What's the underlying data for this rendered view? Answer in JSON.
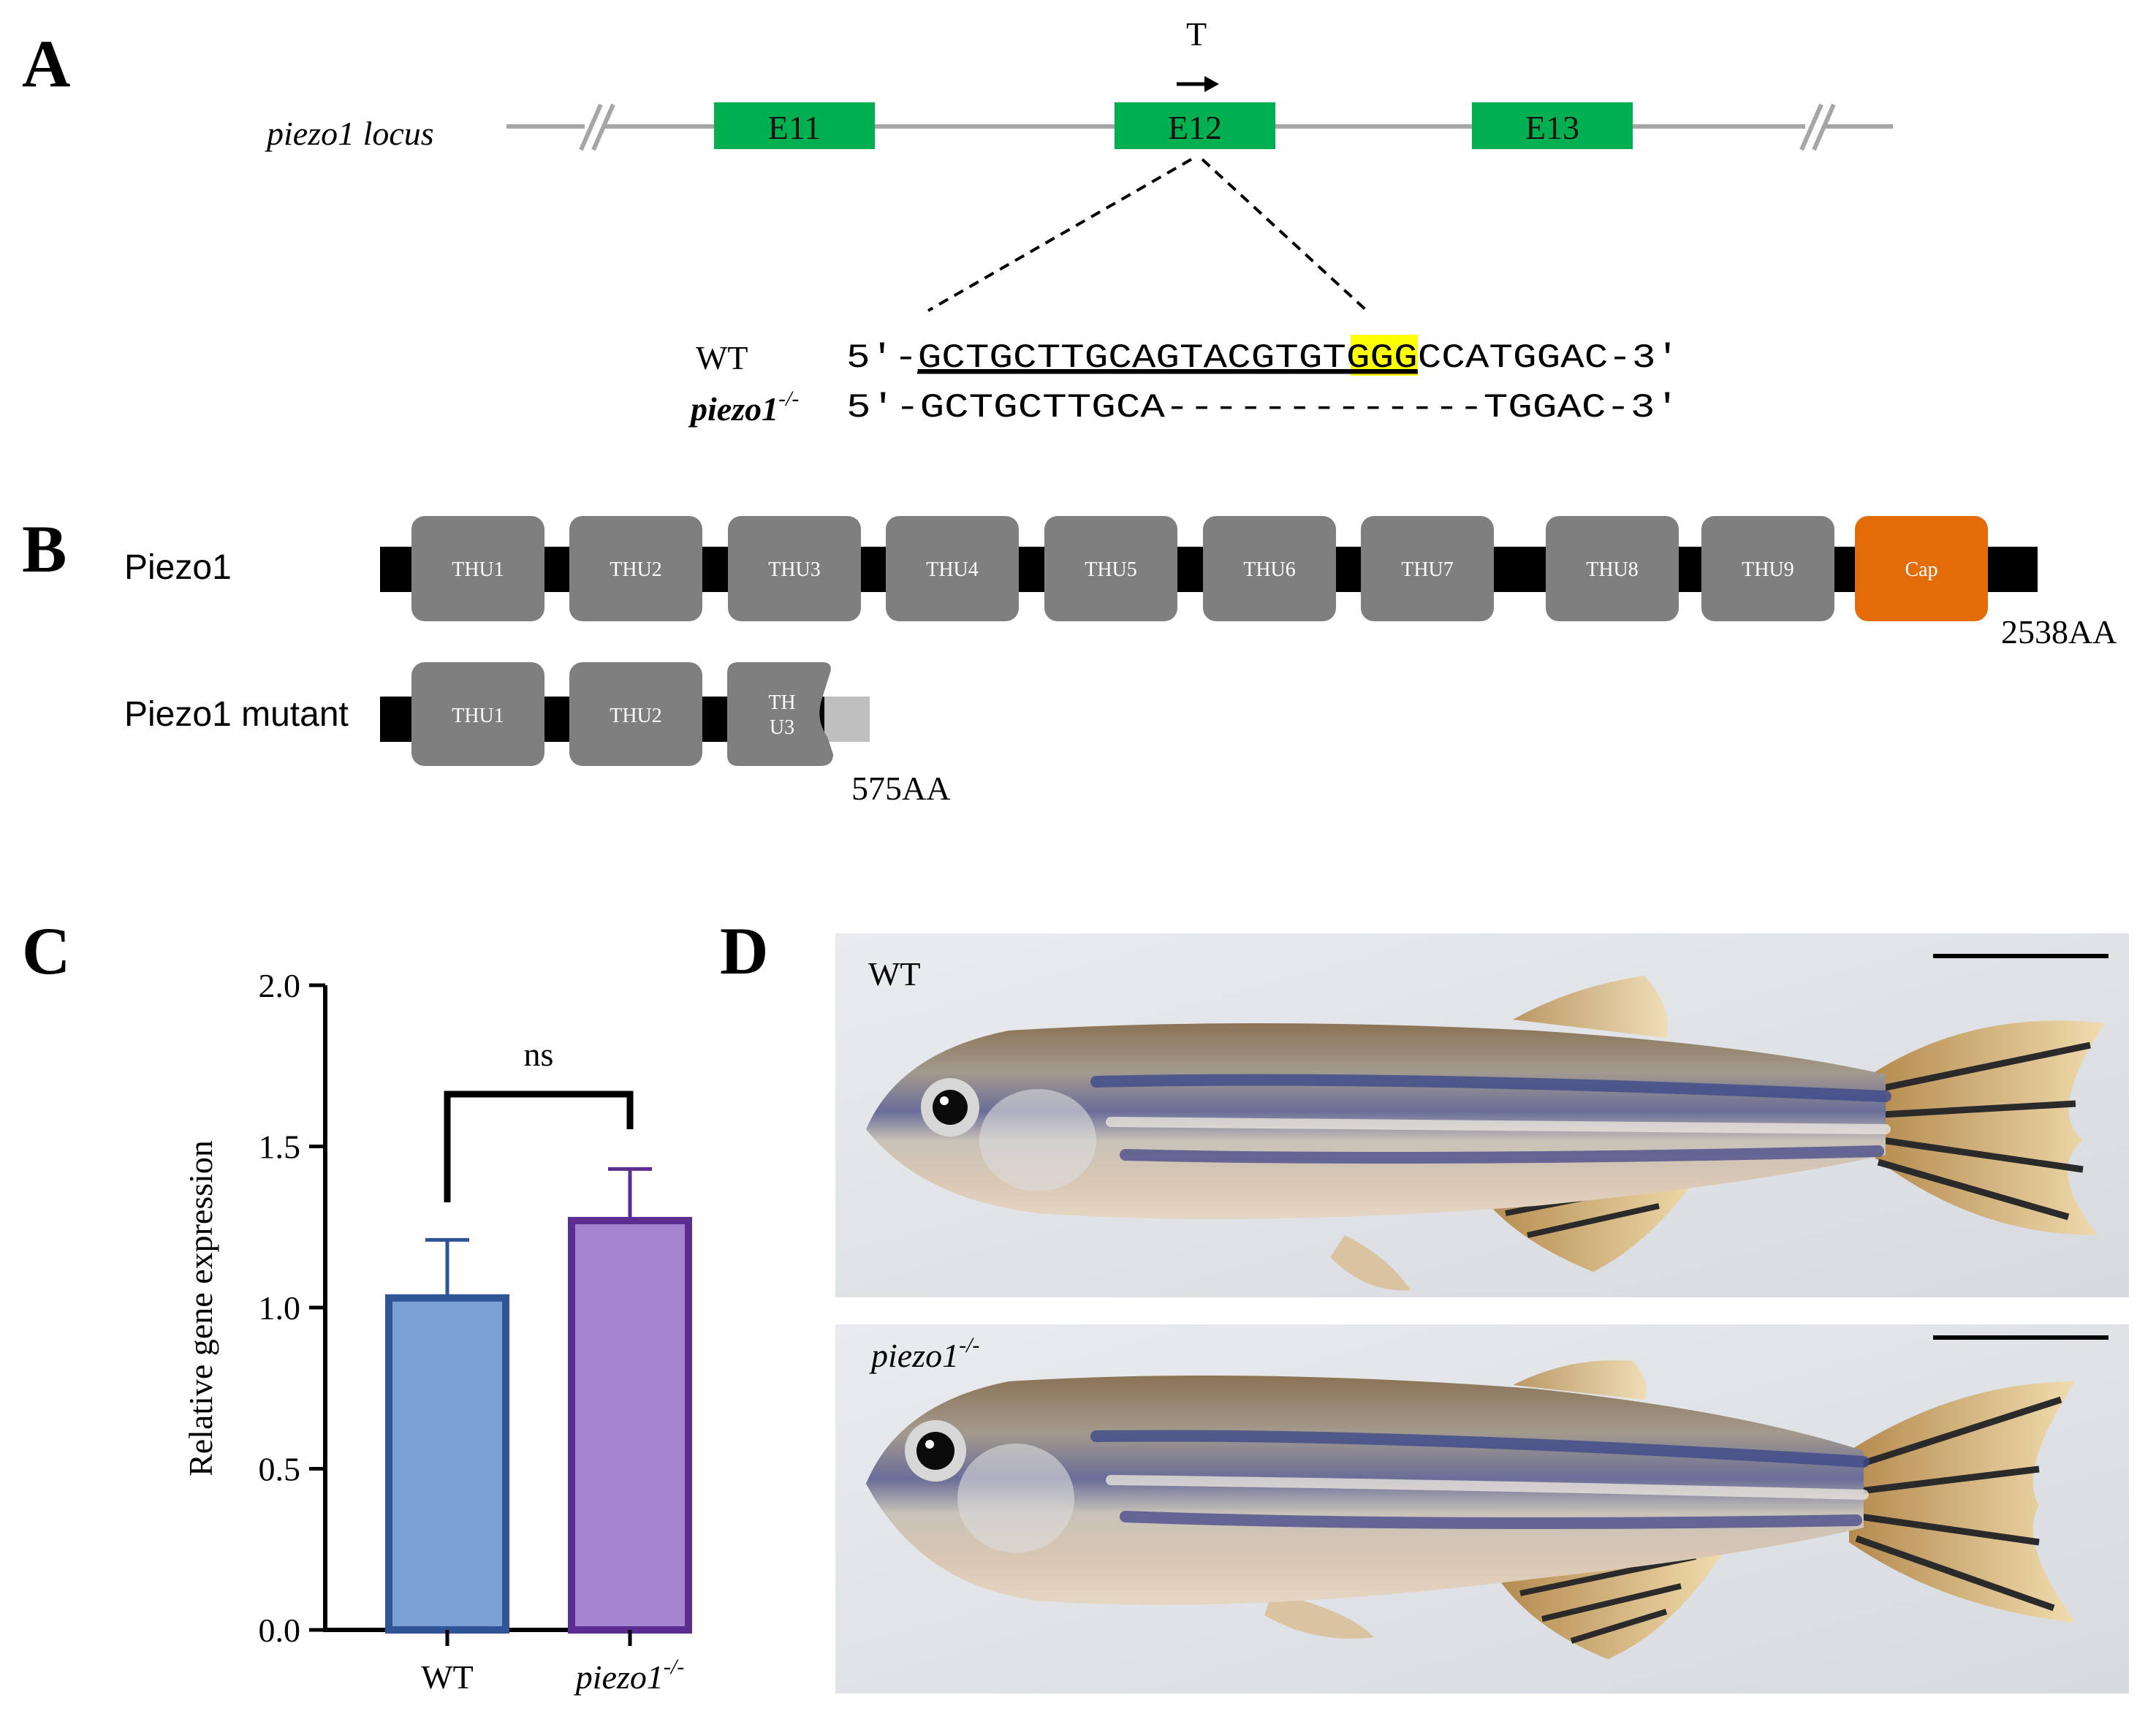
{
  "panels": {
    "a": "A",
    "b": "B",
    "c": "C",
    "d": "D"
  },
  "panel_a": {
    "locus_label": "piezo1 locus",
    "exons": [
      "E11",
      "E12",
      "E13"
    ],
    "target_label": "T",
    "wt_label": "WT",
    "mutant_label": "piezo1",
    "mutant_superscript": "-/-",
    "wt_seq": {
      "prefix": "5′-",
      "guide": "GCTGCTTGCAGTACGTGT",
      "pam": "GGG",
      "rest": "CCATGGAC-3′"
    },
    "mut_seq": "5′-GCTGCTTGCA-------------TGGAC-3′",
    "colors": {
      "exon": "#00b050",
      "pam_highlight": "#ffff00",
      "line": "#a6a6a6"
    }
  },
  "panel_b": {
    "wt_label": "Piezo1",
    "mutant_label": "Piezo1 mutant",
    "wt_domains": [
      "THU1",
      "THU2",
      "THU3",
      "THU4",
      "THU5",
      "THU6",
      "THU7",
      "THU8",
      "THU9",
      "Cap"
    ],
    "mutant_domains": [
      "THU1",
      "THU2"
    ],
    "truncated_domain": [
      "TH",
      "U3"
    ],
    "wt_length": "2538AA",
    "mutant_length": "575AA",
    "colors": {
      "domain": "#7f7f7f",
      "cap": "#e36c09",
      "backbone": "#000000",
      "truncated_tail": "#bfbfbf"
    }
  },
  "chart_data": {
    "type": "bar",
    "categories": [
      "WT",
      "piezo1"
    ],
    "category_superscripts": [
      "",
      "-/-"
    ],
    "values": [
      1.03,
      1.27
    ],
    "error_upper": [
      1.21,
      1.43
    ],
    "ylabel": "Relative gene expression",
    "xlabel": "",
    "ylim": [
      0,
      2.0
    ],
    "yticks": [
      "0.0",
      "0.5",
      "1.0",
      "1.5",
      "2.0"
    ],
    "significance": "ns",
    "colors": {
      "fill": [
        "#7aa0d4",
        "#a484cf"
      ],
      "edge": [
        "#2f5597",
        "#5b2d90"
      ]
    }
  },
  "panel_d": {
    "top_label": "WT",
    "bottom_label": "piezo1",
    "bottom_superscript": "-/-"
  }
}
